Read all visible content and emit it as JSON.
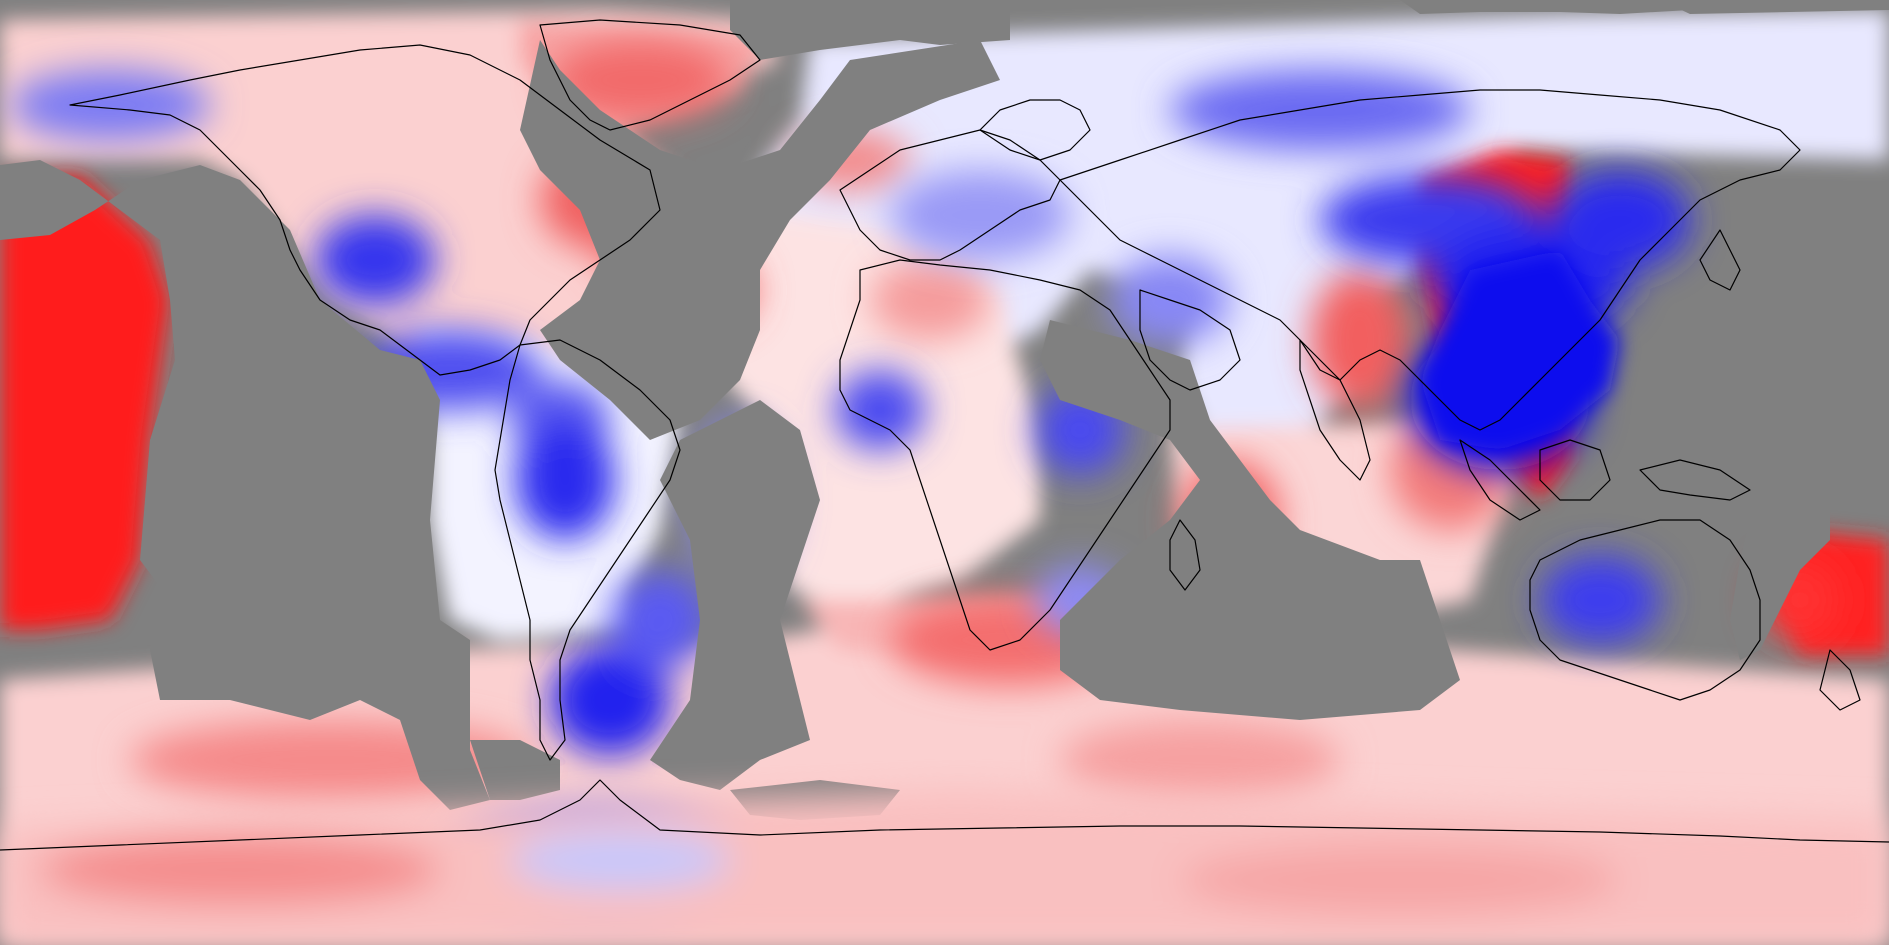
{
  "map": {
    "projection": "equirectangular",
    "coverage": "global",
    "color_scale": {
      "positive": "#ff0000",
      "neutral": "#ffffff",
      "negative": "#0000ff",
      "missing": "#808080"
    },
    "coastline_color": "#000000",
    "legend": null,
    "title": null
  }
}
